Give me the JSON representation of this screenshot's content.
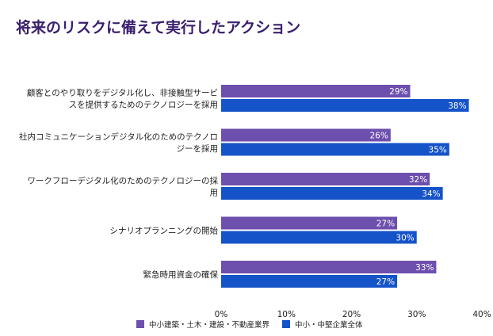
{
  "chart_data": {
    "type": "bar",
    "orientation": "horizontal",
    "title": "将来のリスクに備えて実行したアクション",
    "categories": [
      [
        "顧客とのやり取りをデジタル化し、非接触型サービ",
        "スを提供するためのテクノロジーを採用"
      ],
      [
        "社内コミュニケーションデジタル化のためのテクノロ",
        "ジーを採用"
      ],
      [
        "ワークフローデジタル化のためのテクノロジーの採",
        "用"
      ],
      [
        "シナリオプランニングの開始"
      ],
      [
        "緊急時用資金の確保"
      ]
    ],
    "series": [
      {
        "name": "中小建築・土木・建設・不動産業界",
        "color": "#6d4fae",
        "values": [
          29,
          26,
          32,
          27,
          33
        ]
      },
      {
        "name": "中小・中堅企業全体",
        "color": "#1553c8",
        "values": [
          38,
          35,
          34,
          30,
          27
        ]
      }
    ],
    "xlim": [
      0,
      40
    ],
    "xticks": [
      0,
      10,
      20,
      30,
      40
    ],
    "tick_format": "{v}%",
    "value_format": "{v}%",
    "legend_position": "bottom",
    "grid": false
  }
}
